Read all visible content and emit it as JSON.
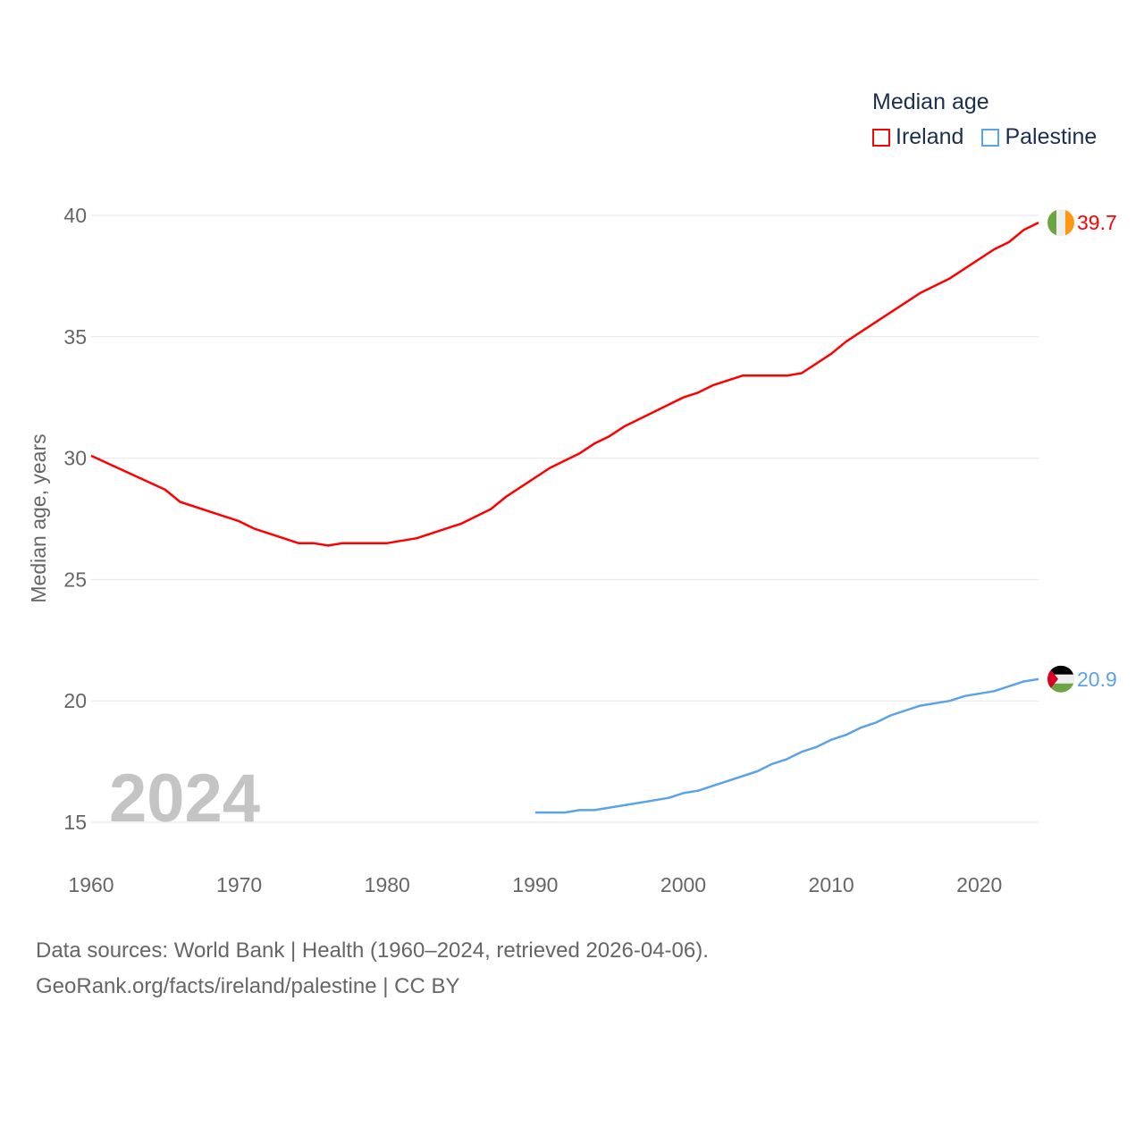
{
  "chart_data": {
    "type": "line",
    "title": "Median age",
    "ylabel": "Median age, years",
    "xlabel": "",
    "xlim": [
      1960,
      2024
    ],
    "ylim": [
      15,
      40
    ],
    "x_ticks": [
      "1960",
      "1970",
      "1980",
      "1990",
      "2000",
      "2010",
      "2020"
    ],
    "y_ticks": [
      "15",
      "20",
      "25",
      "30",
      "35",
      "40"
    ],
    "grid": true,
    "legend_placement": "top-right",
    "year_watermark": "2024",
    "series": [
      {
        "name": "Ireland",
        "color": "#ff0000",
        "end_label": "39.7",
        "points": [
          [
            1960,
            30.1
          ],
          [
            1965,
            28.7
          ],
          [
            1966,
            28.2
          ],
          [
            1970,
            27.4
          ],
          [
            1971,
            27.1
          ],
          [
            1974,
            26.5
          ],
          [
            1975,
            26.5
          ],
          [
            1976,
            26.4
          ],
          [
            1977,
            26.5
          ],
          [
            1980,
            26.5
          ],
          [
            1982,
            26.7
          ],
          [
            1985,
            27.3
          ],
          [
            1987,
            27.9
          ],
          [
            1988,
            28.4
          ],
          [
            1991,
            29.6
          ],
          [
            1993,
            30.2
          ],
          [
            1994,
            30.6
          ],
          [
            1995,
            30.9
          ],
          [
            1996,
            31.3
          ],
          [
            1998,
            31.9
          ],
          [
            2000,
            32.5
          ],
          [
            2001,
            32.7
          ],
          [
            2002,
            33.0
          ],
          [
            2004,
            33.4
          ],
          [
            2007,
            33.4
          ],
          [
            2008,
            33.5
          ],
          [
            2010,
            34.3
          ],
          [
            2011,
            34.8
          ],
          [
            2014,
            36.0
          ],
          [
            2016,
            36.8
          ],
          [
            2018,
            37.4
          ],
          [
            2021,
            38.6
          ],
          [
            2022,
            38.9
          ],
          [
            2023,
            39.4
          ],
          [
            2024,
            39.7
          ]
        ]
      },
      {
        "name": "Palestine",
        "color": "#5ba3e8",
        "end_label": "20.9",
        "points": [
          [
            1990,
            15.4
          ],
          [
            1992,
            15.4
          ],
          [
            1993,
            15.5
          ],
          [
            1994,
            15.5
          ],
          [
            1996,
            15.7
          ],
          [
            1999,
            16.0
          ],
          [
            2000,
            16.2
          ],
          [
            2001,
            16.3
          ],
          [
            2005,
            17.1
          ],
          [
            2006,
            17.4
          ],
          [
            2007,
            17.6
          ],
          [
            2008,
            17.9
          ],
          [
            2009,
            18.1
          ],
          [
            2010,
            18.4
          ],
          [
            2011,
            18.6
          ],
          [
            2012,
            18.9
          ],
          [
            2013,
            19.1
          ],
          [
            2014,
            19.4
          ],
          [
            2016,
            19.8
          ],
          [
            2018,
            20.0
          ],
          [
            2019,
            20.2
          ],
          [
            2021,
            20.4
          ],
          [
            2023,
            20.8
          ],
          [
            2024,
            20.9
          ]
        ]
      }
    ]
  },
  "footer": {
    "sources": "Data sources: World Bank | Health (1960–2024, retrieved 2026-04-06).",
    "credit": "GeoRank.org/facts/ireland/palestine | CC BY"
  }
}
